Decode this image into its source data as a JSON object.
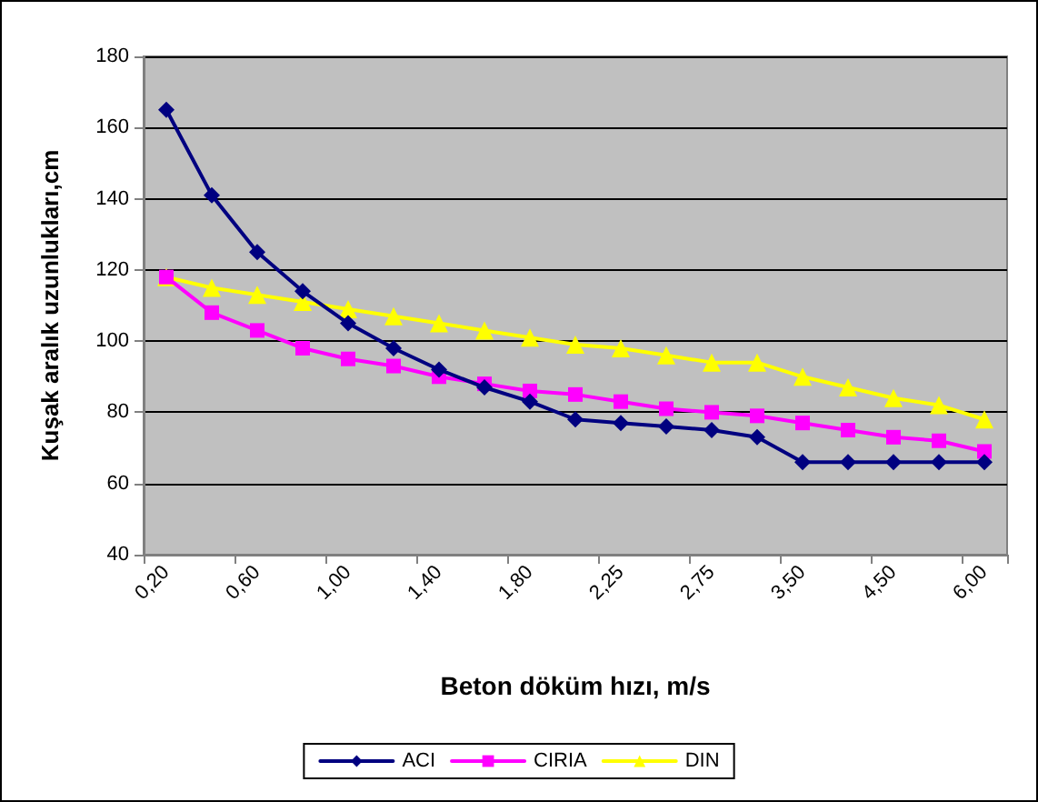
{
  "chart_data": {
    "type": "line",
    "xlabel": "Beton döküm hızı, m/s",
    "ylabel": "Kuşak aralık uzunlukları,cm",
    "categories": [
      "0,20",
      null,
      "0,60",
      null,
      "1,00",
      null,
      "1,40",
      null,
      "1,80",
      null,
      "2,25",
      null,
      "2,75",
      null,
      "3,50",
      null,
      "4,50",
      null,
      "6,00"
    ],
    "series": [
      {
        "name": "ACI",
        "color": "#000080",
        "marker": "diamond",
        "values": [
          165,
          141,
          125,
          114,
          105,
          98,
          92,
          87,
          83,
          78,
          77,
          76,
          75,
          73,
          66,
          66,
          66,
          66,
          66
        ]
      },
      {
        "name": "CIRIA",
        "color": "#ff00ff",
        "marker": "square",
        "values": [
          118,
          108,
          103,
          98,
          95,
          93,
          90,
          88,
          86,
          85,
          83,
          81,
          80,
          79,
          77,
          75,
          73,
          72,
          69
        ]
      },
      {
        "name": "DIN",
        "color": "#ffff00",
        "marker": "triangle",
        "values": [
          118,
          115,
          113,
          111,
          109,
          107,
          105,
          103,
          101,
          99,
          98,
          96,
          94,
          94,
          90,
          87,
          84,
          82,
          78
        ]
      }
    ],
    "ylim": [
      40,
      180
    ],
    "yticks": [
      40,
      60,
      80,
      100,
      120,
      140,
      160,
      180
    ],
    "grid": "y",
    "legend": "bottom"
  }
}
